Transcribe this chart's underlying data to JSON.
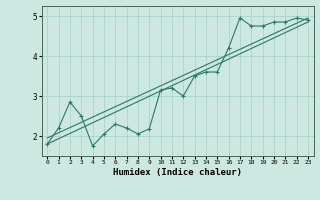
{
  "title": "",
  "xlabel": "Humidex (Indice chaleur)",
  "ylabel": "",
  "xlim": [
    -0.5,
    23.5
  ],
  "ylim": [
    1.5,
    5.25
  ],
  "yticks": [
    2,
    3,
    4,
    5
  ],
  "xticks": [
    0,
    1,
    2,
    3,
    4,
    5,
    6,
    7,
    8,
    9,
    10,
    11,
    12,
    13,
    14,
    15,
    16,
    17,
    18,
    19,
    20,
    21,
    22,
    23
  ],
  "bg_color": "#cce8e0",
  "line_color": "#2a7a66",
  "grid_color": "#aad4cc",
  "line1_x": [
    0,
    1,
    2,
    3,
    4,
    5,
    6,
    7,
    8,
    9,
    10,
    11,
    12,
    13,
    14,
    15,
    16,
    17,
    18,
    19,
    20,
    21,
    22,
    23
  ],
  "line1_y": [
    1.8,
    2.2,
    2.85,
    2.5,
    1.75,
    2.05,
    2.3,
    2.2,
    2.05,
    2.18,
    3.15,
    3.2,
    3.0,
    3.5,
    3.6,
    3.6,
    4.2,
    4.95,
    4.75,
    4.75,
    4.85,
    4.85,
    4.95,
    4.9
  ],
  "line2_x": [
    0,
    23
  ],
  "line2_y": [
    1.8,
    4.85
  ],
  "line3_x": [
    0,
    23
  ],
  "line3_y": [
    1.95,
    4.95
  ],
  "marker": "+"
}
